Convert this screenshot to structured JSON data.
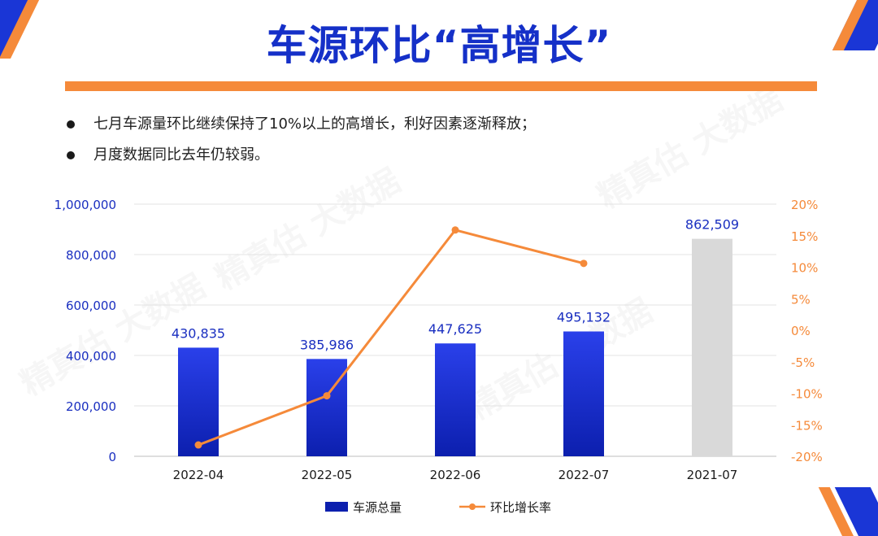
{
  "title": "车源环比“高增长”",
  "bullets": [
    "七月车源量环比继续保持了10%以上的高增长，利好因素逐渐释放；",
    "月度数据同比去年仍较弱。"
  ],
  "watermark": "精真估 大数据",
  "colors": {
    "title": "#1530c8",
    "accent": "#f58a3a",
    "bar_top": "#2a40ea",
    "bar_bottom": "#0c1fae",
    "bar_compare": "#d9d9d9",
    "left_axis": "#1a2fc0",
    "right_axis": "#f58a3a"
  },
  "chart_data": {
    "type": "bar",
    "categories": [
      "2022-04",
      "2022-05",
      "2022-06",
      "2022-07",
      "2021-07"
    ],
    "left_axis": {
      "min": 0,
      "max": 1000000,
      "ticks": [
        0,
        200000,
        400000,
        600000,
        800000,
        1000000
      ],
      "tick_labels": [
        "0",
        "200,000",
        "400,000",
        "600,000",
        "800,000",
        "1,000,000"
      ]
    },
    "right_axis": {
      "min": -20,
      "max": 20,
      "ticks": [
        -20,
        -15,
        -10,
        -5,
        0,
        5,
        10,
        15,
        20
      ],
      "tick_labels": [
        "-20%",
        "-15%",
        "-10%",
        "-5%",
        "0%",
        "5%",
        "10%",
        "15%",
        "20%"
      ]
    },
    "series": [
      {
        "name": "车源总量",
        "type": "bar",
        "axis": "left",
        "values": [
          430835,
          385986,
          447625,
          495132,
          862509
        ],
        "labels": [
          "430,835",
          "385,986",
          "447,625",
          "495,132",
          "862,509"
        ]
      },
      {
        "name": "环比增长率",
        "type": "line",
        "axis": "right",
        "values": [
          -18.2,
          -10.4,
          15.9,
          10.6,
          null
        ]
      }
    ],
    "legend_position": "bottom",
    "grid": true
  }
}
